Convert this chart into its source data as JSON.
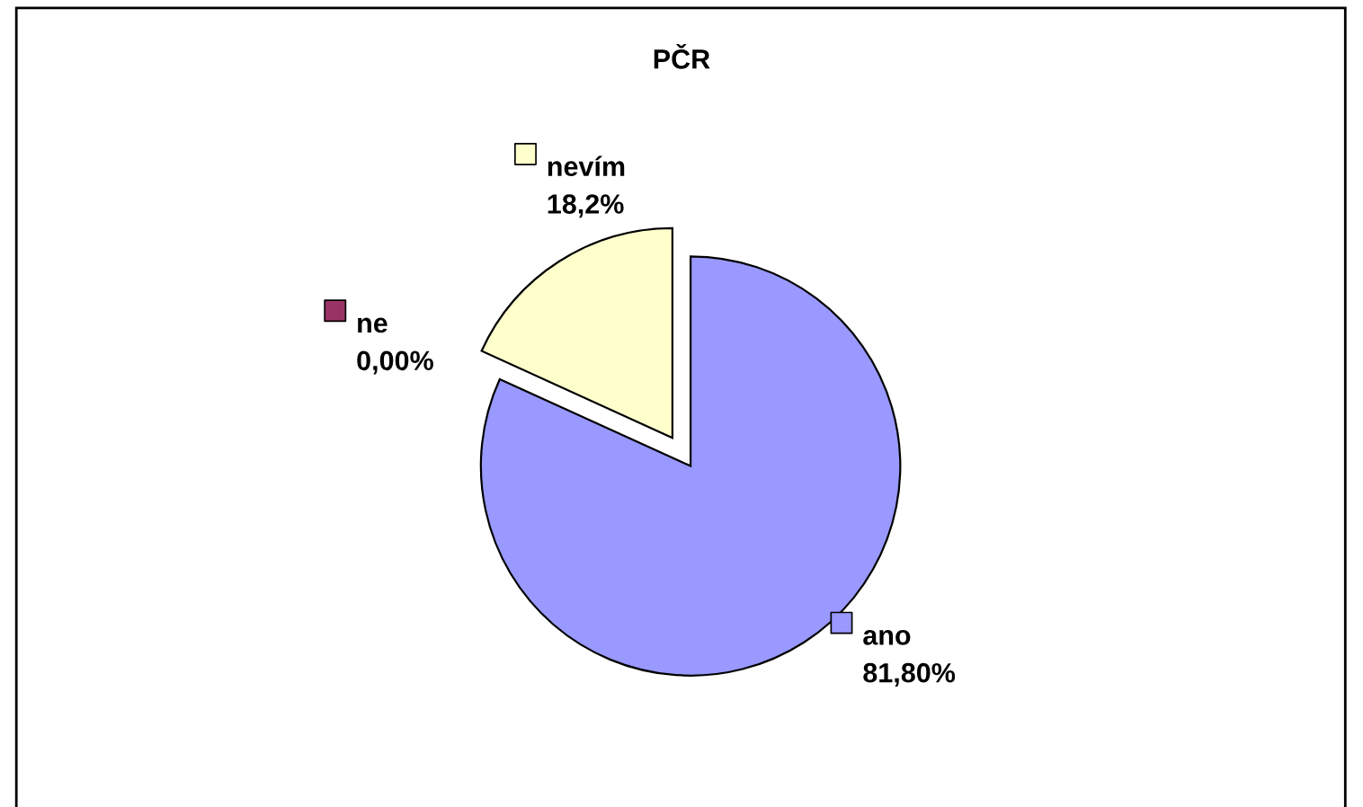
{
  "chart_data": {
    "type": "pie",
    "title": "PČR",
    "categories": [
      "ano",
      "ne",
      "nevím"
    ],
    "values": [
      81.8,
      0.0,
      18.2
    ],
    "value_labels": [
      "81,80%",
      "0,00%",
      "18,2%"
    ],
    "colors": [
      "#9999ff",
      "#993366",
      "#ffffcc"
    ],
    "legend": "left"
  }
}
